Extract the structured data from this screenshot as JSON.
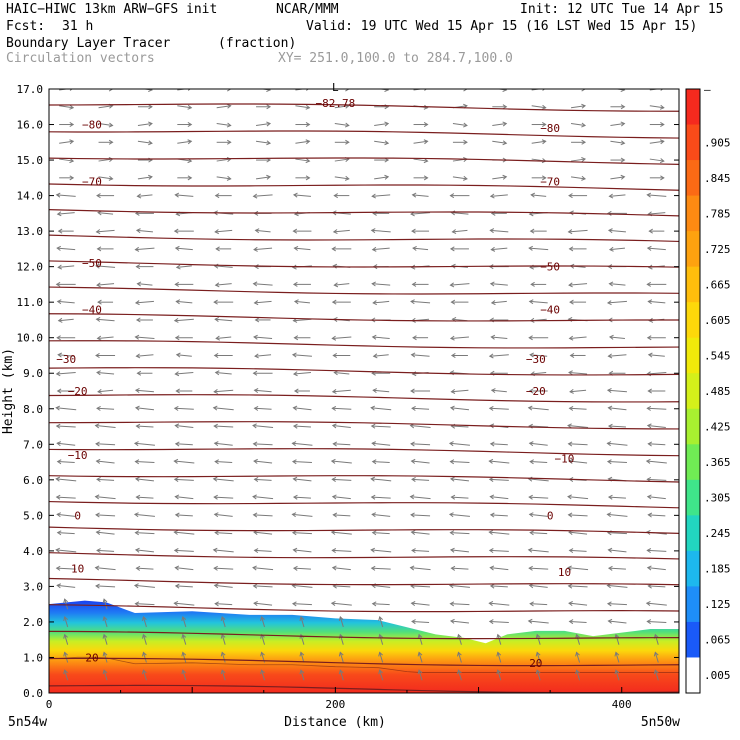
{
  "header": {
    "model": "HAIC−HIWC 13km ARW−GFS init",
    "org": "NCAR/MMM",
    "init": "Init: 12 UTC Tue 14 Apr 15",
    "fcst_label": "Fcst:",
    "fcst_value": "31 h",
    "valid": "Valid: 19 UTC Wed 15 Apr 15 (16 LST Wed 15 Apr 15)",
    "field": "Boundary Layer Tracer",
    "field_units": "(fraction)",
    "vectors": "Circulation vectors",
    "xy": "XY= 251.0,100.0 to 284.7,100.0"
  },
  "chart_data": {
    "type": "heatmap",
    "xlabel": "Distance (km)",
    "ylabel": "Height (km)",
    "xlim": [
      0,
      440
    ],
    "ylim": [
      0,
      17
    ],
    "xticks": [
      0,
      200,
      400
    ],
    "xtick_labels": [
      "0",
      "200",
      "400"
    ],
    "yticks": [
      0,
      1,
      2,
      3,
      4,
      5,
      6,
      7,
      8,
      9,
      10,
      11,
      12,
      13,
      14,
      15,
      16,
      17
    ],
    "ytick_labels": [
      "0.0",
      "1.0",
      "2.0",
      "3.0",
      "4.0",
      "5.0",
      "6.0",
      "7.0",
      "8.0",
      "9.0",
      "10.0",
      "11.0",
      "12.0",
      "13.0",
      "14.0",
      "15.0",
      "16.0",
      "17.0"
    ],
    "endpoint_left": "5n54w",
    "endpoint_right": "5n50w",
    "layer_top_km": [
      [
        0,
        2.5
      ],
      [
        25,
        2.6
      ],
      [
        40,
        2.55
      ],
      [
        60,
        2.25
      ],
      [
        100,
        2.3
      ],
      [
        140,
        2.2
      ],
      [
        170,
        2.2
      ],
      [
        200,
        2.1
      ],
      [
        230,
        2.05
      ],
      [
        250,
        1.85
      ],
      [
        270,
        1.65
      ],
      [
        290,
        1.55
      ],
      [
        305,
        1.4
      ],
      [
        320,
        1.65
      ],
      [
        340,
        1.75
      ],
      [
        360,
        1.75
      ],
      [
        380,
        1.6
      ],
      [
        400,
        1.7
      ],
      [
        420,
        1.8
      ],
      [
        440,
        1.8
      ]
    ],
    "isotherm_labels": [
      {
        "x": 30,
        "y": 16.0,
        "text": "−80"
      },
      {
        "x": 350,
        "y": 15.9,
        "text": "−80"
      },
      {
        "x": 30,
        "y": 14.4,
        "text": "−70"
      },
      {
        "x": 350,
        "y": 14.4,
        "text": "−70"
      },
      {
        "x": 30,
        "y": 12.1,
        "text": "−50"
      },
      {
        "x": 350,
        "y": 12.0,
        "text": "−50"
      },
      {
        "x": 30,
        "y": 10.8,
        "text": "−40"
      },
      {
        "x": 350,
        "y": 10.8,
        "text": "−40"
      },
      {
        "x": 12,
        "y": 9.4,
        "text": "−30"
      },
      {
        "x": 340,
        "y": 9.4,
        "text": "−30"
      },
      {
        "x": 20,
        "y": 8.5,
        "text": "−20"
      },
      {
        "x": 340,
        "y": 8.5,
        "text": "−20"
      },
      {
        "x": 20,
        "y": 6.7,
        "text": "−10"
      },
      {
        "x": 360,
        "y": 6.6,
        "text": "−10"
      },
      {
        "x": 20,
        "y": 5.0,
        "text": "0"
      },
      {
        "x": 350,
        "y": 5.0,
        "text": "0"
      },
      {
        "x": 20,
        "y": 3.5,
        "text": "10"
      },
      {
        "x": 360,
        "y": 3.4,
        "text": "10"
      },
      {
        "x": 30,
        "y": 1.0,
        "text": "20"
      },
      {
        "x": 340,
        "y": 0.85,
        "text": "20"
      },
      {
        "x": 200,
        "y": 16.6,
        "text": "−82.78"
      }
    ],
    "annotations": [
      {
        "x": 200,
        "y": 17.05,
        "text": "L"
      }
    ],
    "colorbar": {
      "labels": [
        "–",
        ".905",
        ".845",
        ".785",
        ".725",
        ".665",
        ".605",
        ".545",
        ".485",
        ".425",
        ".365",
        ".305",
        ".245",
        ".185",
        ".125",
        ".065",
        ".005"
      ],
      "colors": [
        "#f52a1e",
        "#fa4b19",
        "#fb6a15",
        "#fd8a12",
        "#fea20f",
        "#ffbe0c",
        "#fdd80a",
        "#f1ea0a",
        "#d4f01a",
        "#a8f030",
        "#70ec54",
        "#3fe58a",
        "#22d6c0",
        "#1db8ee",
        "#1e8ef8",
        "#1a5af8",
        "#ffffff"
      ]
    }
  }
}
